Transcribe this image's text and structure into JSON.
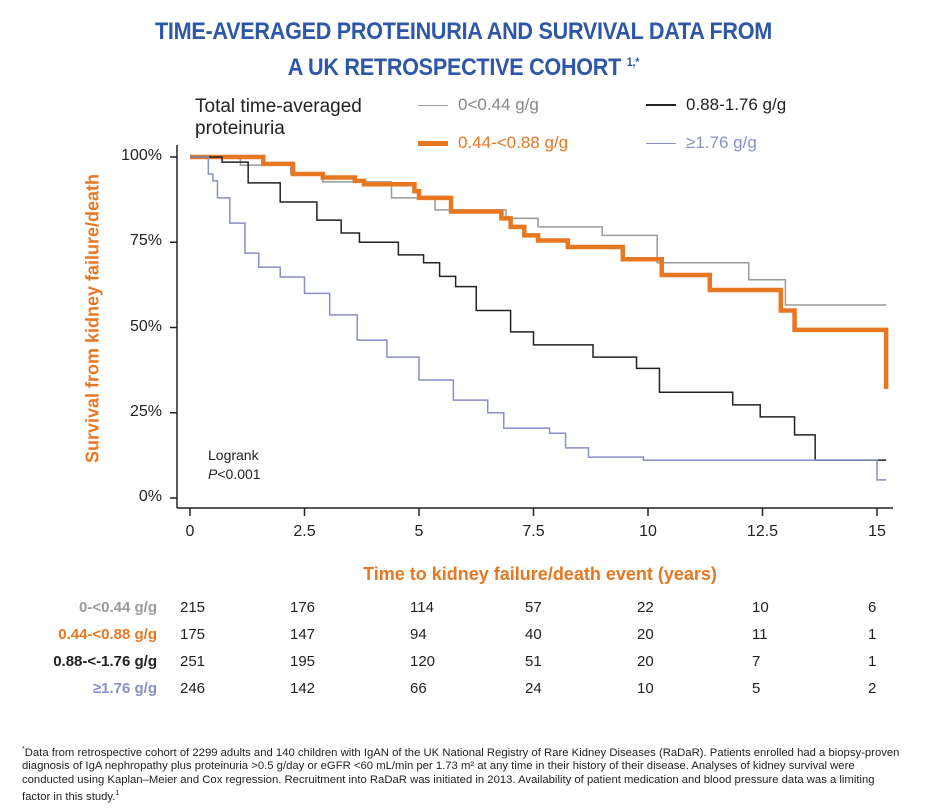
{
  "title": {
    "line1": "TIME-AVERAGED PROTEINURIA AND SURVIVAL DATA FROM",
    "line2": "A UK RETROSPECTIVE COHORT",
    "sup": "1,*"
  },
  "colors": {
    "title": "#2f57a8",
    "accent": "#e87722"
  },
  "chart_data": {
    "type": "line",
    "step": true,
    "xlabel": "Time to kidney failure/death event (years)",
    "ylabel": "Survival from kidney failure/death",
    "xlim": [
      0,
      15.3
    ],
    "ylim": [
      0,
      100
    ],
    "xticks": [
      "0",
      "2.5",
      "5",
      "7.5",
      "10",
      "12.5",
      "15"
    ],
    "xtick_values": [
      0,
      2.5,
      5,
      7.5,
      10,
      12.5,
      15
    ],
    "yticks": [
      "0%",
      "25%",
      "50%",
      "75%",
      "100%"
    ],
    "ytick_values": [
      0,
      25,
      50,
      75,
      100
    ],
    "grid": false,
    "legend": {
      "title": "Total time-averaged proteinuria",
      "placement": "top"
    },
    "annotation": {
      "line1": "Logrank",
      "p_italic": "P",
      "p_rest": "<0.001"
    },
    "series": [
      {
        "name": "0<0.44 g/g",
        "color": "#9a9a9a",
        "width": 1.5,
        "points": [
          [
            0,
            100
          ],
          [
            1.1,
            97.6
          ],
          [
            2.2,
            95
          ],
          [
            2.9,
            92.7
          ],
          [
            4.4,
            88
          ],
          [
            5.35,
            84.5
          ],
          [
            6.9,
            82
          ],
          [
            7.6,
            79.5
          ],
          [
            9.0,
            77
          ],
          [
            10.2,
            69
          ],
          [
            12.2,
            64
          ],
          [
            13.0,
            56.6
          ],
          [
            15.2,
            56.6
          ]
        ]
      },
      {
        "name": "0.44-<0.88 g/g",
        "color": "#e87722",
        "width": 4.5,
        "points": [
          [
            0,
            100
          ],
          [
            1.6,
            98
          ],
          [
            2.25,
            95
          ],
          [
            2.9,
            94
          ],
          [
            3.6,
            93
          ],
          [
            3.8,
            92
          ],
          [
            4.9,
            90
          ],
          [
            5.0,
            88
          ],
          [
            5.7,
            84
          ],
          [
            6.8,
            82
          ],
          [
            7.0,
            79.5
          ],
          [
            7.3,
            77
          ],
          [
            7.6,
            75.5
          ],
          [
            8.25,
            73.6
          ],
          [
            9.45,
            70
          ],
          [
            10.3,
            65.4
          ],
          [
            11.35,
            61
          ],
          [
            12.9,
            55
          ],
          [
            13.2,
            49.3
          ],
          [
            15.2,
            32
          ]
        ]
      },
      {
        "name": "0.88-1.76 g/g",
        "color": "#222222",
        "width": 1.5,
        "points": [
          [
            0,
            100
          ],
          [
            0.7,
            98.5
          ],
          [
            1.27,
            92.4
          ],
          [
            1.97,
            86.8
          ],
          [
            2.77,
            81.5
          ],
          [
            3.3,
            77.7
          ],
          [
            3.7,
            75
          ],
          [
            4.55,
            71.3
          ],
          [
            5.1,
            69
          ],
          [
            5.45,
            65
          ],
          [
            5.8,
            62
          ],
          [
            6.25,
            55
          ],
          [
            7.0,
            48.7
          ],
          [
            7.5,
            44.9
          ],
          [
            8.8,
            41.3
          ],
          [
            9.75,
            38
          ],
          [
            10.25,
            31
          ],
          [
            11.85,
            27.3
          ],
          [
            12.45,
            23.8
          ],
          [
            13.2,
            18.5
          ],
          [
            13.65,
            11.1
          ],
          [
            15.2,
            11.1
          ]
        ]
      },
      {
        "name": "≥1.76 g/g",
        "color": "#8a8fc6",
        "width": 1.5,
        "points": [
          [
            0,
            100
          ],
          [
            0.4,
            95
          ],
          [
            0.5,
            93
          ],
          [
            0.6,
            88
          ],
          [
            0.87,
            80.6
          ],
          [
            1.2,
            71.8
          ],
          [
            1.5,
            67.7
          ],
          [
            1.97,
            64.8
          ],
          [
            2.5,
            60
          ],
          [
            3.05,
            53.7
          ],
          [
            3.65,
            46.3
          ],
          [
            4.3,
            41.3
          ],
          [
            5.0,
            34.6
          ],
          [
            5.75,
            28.7
          ],
          [
            6.5,
            25
          ],
          [
            6.85,
            20.5
          ],
          [
            7.85,
            19
          ],
          [
            8.2,
            14.7
          ],
          [
            8.7,
            12
          ],
          [
            9.9,
            11.1
          ],
          [
            15.0,
            5.3
          ],
          [
            15.2,
            5.3
          ]
        ]
      }
    ],
    "risk_table": [
      {
        "label": "0-<0.44 g/g",
        "color": "#9a9a9a",
        "values": [
          "215",
          "176",
          "114",
          "57",
          "22",
          "10",
          "6"
        ]
      },
      {
        "label": "0.44-<0.88 g/g",
        "color": "#e87722",
        "values": [
          "175",
          "147",
          "94",
          "40",
          "20",
          "11",
          "1"
        ]
      },
      {
        "label": "0.88-<-1.76 g/g",
        "color": "#222222",
        "values": [
          "251",
          "195",
          "120",
          "51",
          "20",
          "7",
          "1"
        ]
      },
      {
        "label": "≥1.76 g/g",
        "color": "#8a8fc6",
        "values": [
          "246",
          "142",
          "66",
          "24",
          "10",
          "5",
          "2"
        ]
      }
    ]
  },
  "footnote": {
    "marker": "*",
    "text": "Data from retrospective cohort of 2299 adults and 140 children with IgAN of the UK National Registry of Rare Kidney Diseases (RaDaR). Patients enrolled had a biopsy-proven diagnosis of IgA nephropathy plus proteinuria >0.5 g/day or eGFR <60 mL/min per 1.73 m² at any time in their history of their disease. Analyses of kidney survival were conducted using Kaplan–Meier and Cox regression. Recruitment into RaDaR was initiated in 2013. Availability of patient medication and blood pressure data was a limiting factor in this study.",
    "ref": "1"
  }
}
